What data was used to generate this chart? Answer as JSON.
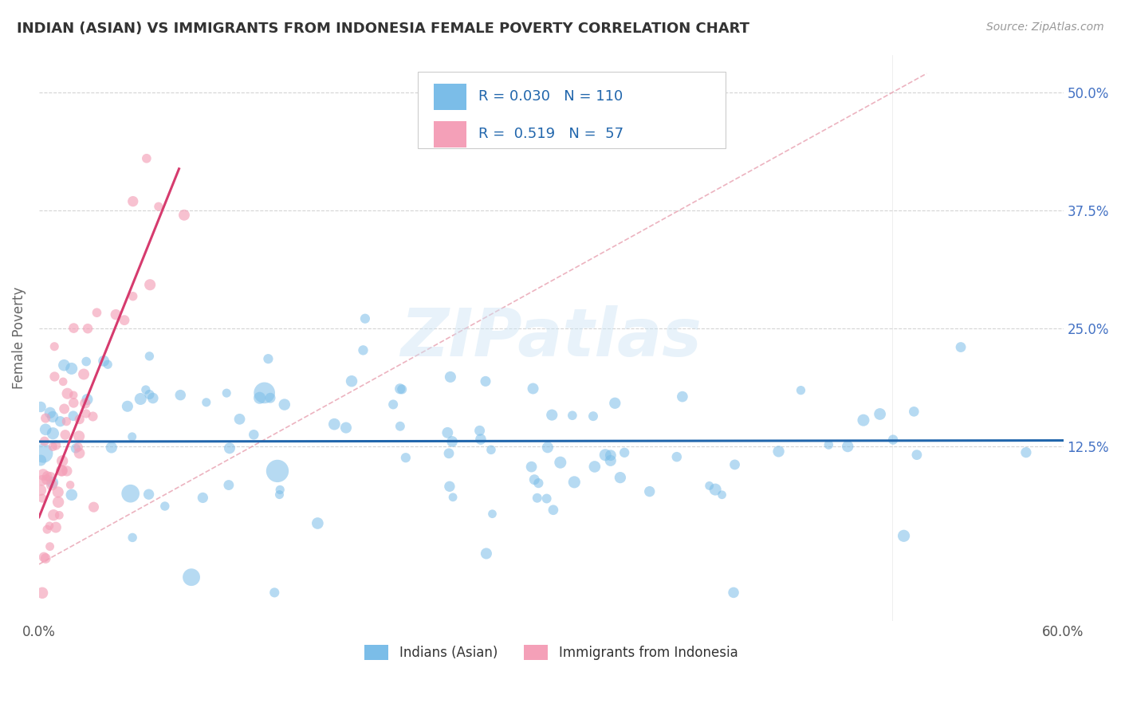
{
  "title": "INDIAN (ASIAN) VS IMMIGRANTS FROM INDONESIA FEMALE POVERTY CORRELATION CHART",
  "source": "Source: ZipAtlas.com",
  "ylabel": "Female Poverty",
  "xlim": [
    0.0,
    0.6
  ],
  "ylim": [
    -0.06,
    0.54
  ],
  "y_tick_labels_right": [
    "12.5%",
    "25.0%",
    "37.5%",
    "50.0%"
  ],
  "y_tick_vals_right": [
    0.125,
    0.25,
    0.375,
    0.5
  ],
  "legend_r": [
    0.03,
    0.519
  ],
  "legend_n": [
    110,
    57
  ],
  "blue_color": "#7bbde8",
  "pink_color": "#f4a0b8",
  "blue_line_color": "#2166ac",
  "pink_line_color": "#d63b6e",
  "title_color": "#333333",
  "source_color": "#999999",
  "watermark": "ZIPatlas",
  "grid_color": "#d0d0d0",
  "seed": 99,
  "blue_n": 110,
  "pink_n": 57
}
